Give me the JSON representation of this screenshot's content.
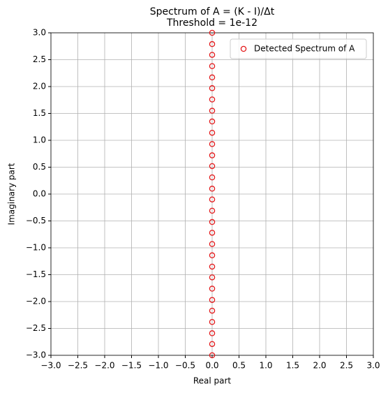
{
  "chart_data": {
    "type": "scatter",
    "title": "Spectrum of A = (K - I)/Δt",
    "subtitle": "Threshold = 1e-12",
    "xlabel": "Real part",
    "ylabel": "Imaginary part",
    "x": [
      0,
      0,
      0,
      0,
      0,
      0,
      0,
      0,
      0,
      0,
      0,
      0,
      0,
      0,
      0,
      0,
      0,
      0,
      0,
      0,
      0,
      0,
      0,
      0,
      0,
      0,
      0,
      0,
      0,
      0
    ],
    "series": [
      {
        "name": "Detected Spectrum of A",
        "color": "#e41a1c",
        "values": [
          -3.0,
          -2.79,
          -2.59,
          -2.38,
          -2.17,
          -1.97,
          -1.76,
          -1.55,
          -1.35,
          -1.14,
          -0.93,
          -0.72,
          -0.52,
          -0.31,
          -0.1,
          0.1,
          0.31,
          0.52,
          0.72,
          0.93,
          1.14,
          1.35,
          1.55,
          1.76,
          1.97,
          2.17,
          2.38,
          2.59,
          2.79,
          3.0
        ]
      }
    ],
    "xlim": [
      -3,
      3
    ],
    "ylim": [
      -3,
      3
    ],
    "xticks": [
      {
        "value": -3,
        "label": "−3.0"
      },
      {
        "value": -2.5,
        "label": "−2.5"
      },
      {
        "value": -2,
        "label": "−2.0"
      },
      {
        "value": -1.5,
        "label": "−1.5"
      },
      {
        "value": -1,
        "label": "−1.0"
      },
      {
        "value": -0.5,
        "label": "−0.5"
      },
      {
        "value": 0,
        "label": "0.0"
      },
      {
        "value": 0.5,
        "label": "0.5"
      },
      {
        "value": 1,
        "label": "1.0"
      },
      {
        "value": 1.5,
        "label": "1.5"
      },
      {
        "value": 2,
        "label": "2.0"
      },
      {
        "value": 2.5,
        "label": "2.5"
      },
      {
        "value": 3,
        "label": "3.0"
      }
    ],
    "yticks": [
      {
        "value": -3,
        "label": "−3.0"
      },
      {
        "value": -2.5,
        "label": "−2.5"
      },
      {
        "value": -2,
        "label": "−2.0"
      },
      {
        "value": -1.5,
        "label": "−1.5"
      },
      {
        "value": -1,
        "label": "−1.0"
      },
      {
        "value": -0.5,
        "label": "−0.5"
      },
      {
        "value": 0,
        "label": "0.0"
      },
      {
        "value": 0.5,
        "label": "0.5"
      },
      {
        "value": 1,
        "label": "1.0"
      },
      {
        "value": 1.5,
        "label": "1.5"
      },
      {
        "value": 2,
        "label": "2.0"
      },
      {
        "value": 2.5,
        "label": "2.5"
      },
      {
        "value": 3,
        "label": "3.0"
      }
    ],
    "grid": true,
    "legend": "upper right"
  }
}
